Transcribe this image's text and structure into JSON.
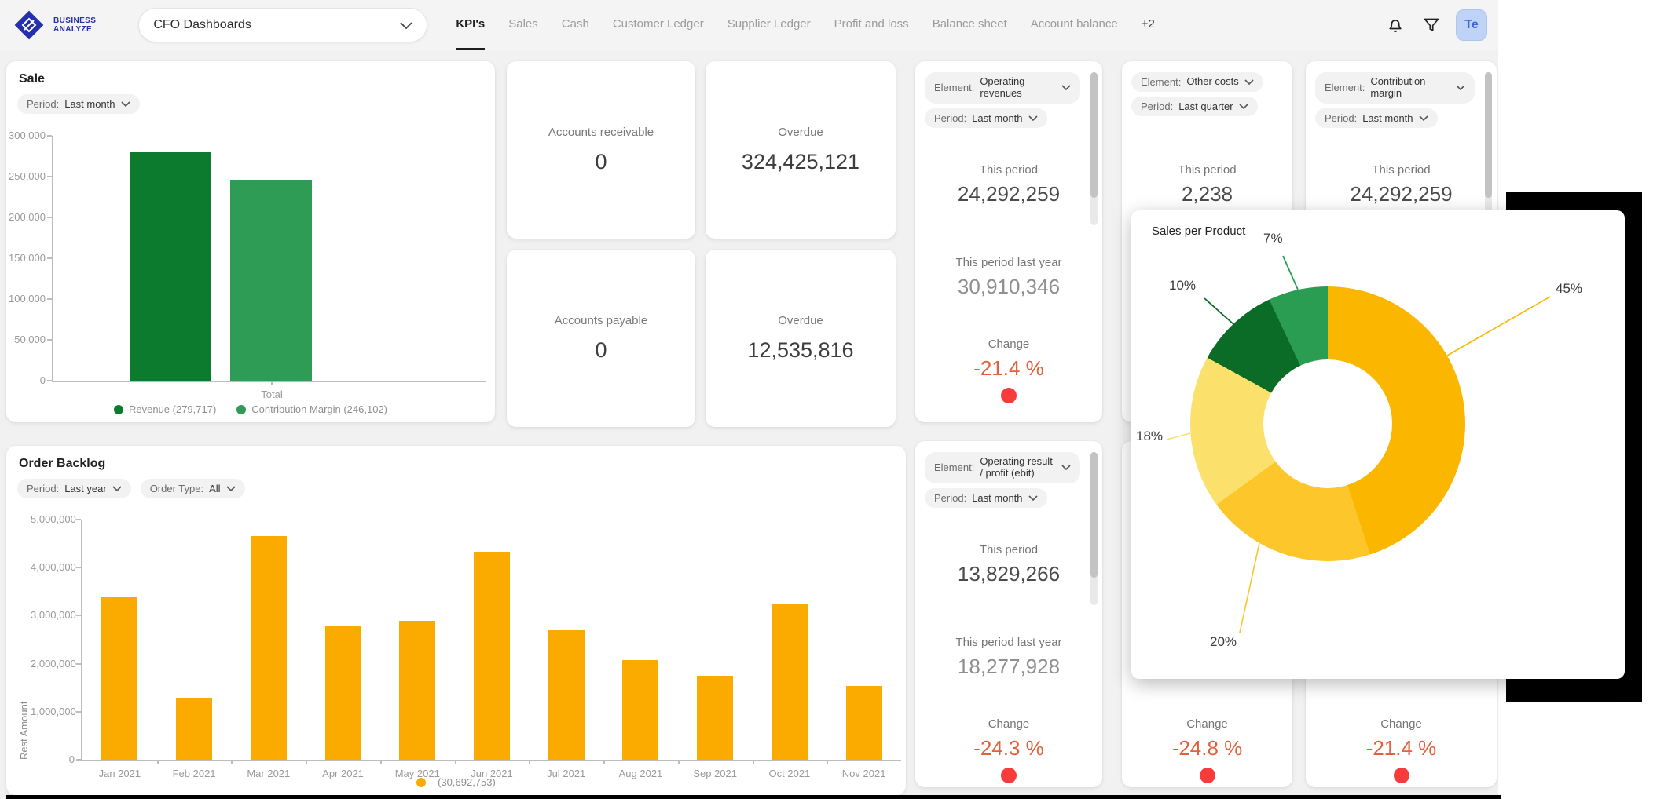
{
  "navbar": {
    "logo_line1": "BUSINESS",
    "logo_line2": "ANALYZE",
    "dashboard_selector": "CFO Dashboards",
    "tabs": [
      "KPI's",
      "Sales",
      "Cash",
      "Customer Ledger",
      "Supplier Ledger",
      "Profit and loss",
      "Balance sheet",
      "Account balance",
      "+2"
    ],
    "active_tab": "KPI's",
    "avatar": "Te"
  },
  "sale": {
    "title": "Sale",
    "period_label": "Period:",
    "period_value": "Last month",
    "x_label": "Total",
    "legend": [
      {
        "name": "Revenue (279,717)"
      },
      {
        "name": "Contribution Margin (246,102)"
      }
    ]
  },
  "stats": [
    {
      "label": "Accounts receivable",
      "value": "0"
    },
    {
      "label": "Overdue",
      "value": "324,425,121"
    },
    {
      "label": "Accounts payable",
      "value": "0"
    },
    {
      "label": "Overdue",
      "value": "12,535,816"
    }
  ],
  "kpis": {
    "element_label": "Element:",
    "period_label": "Period:",
    "this_period_label": "This period",
    "last_year_label": "This period last year",
    "change_label": "Change",
    "cards": [
      {
        "element": "Operating revenues",
        "period": "Last month",
        "this_period": "24,292,259",
        "last_year": "30,910,346",
        "change": "-21.4 %"
      },
      {
        "element": "Other costs",
        "period": "Last quarter",
        "this_period": "2,238"
      },
      {
        "element": "Contribution margin",
        "period": "Last month",
        "this_period": "24,292,259"
      },
      {
        "element": "Operating result / profit (ebit)",
        "period": "Last month",
        "this_period": "13,829,266",
        "last_year": "18,277,928",
        "change": "-24.3 %"
      },
      {
        "change": "-24.8 %"
      },
      {
        "change": "-21.4 %"
      }
    ]
  },
  "order_backlog": {
    "title": "Order Backlog",
    "period_label": "Period:",
    "period_value": "Last year",
    "ordertype_label": "Order Type:",
    "ordertype_value": "All",
    "y_axis_label": "Rest Amount",
    "legend": "- (30,692,753)"
  },
  "sales_per_product": {
    "title": "Sales per Product",
    "labels": [
      "45%",
      "20%",
      "18%",
      "10%",
      "7%"
    ]
  },
  "colors": {
    "revenue": "#0C7B2D",
    "contribution_margin": "#2E9C55",
    "amber": "#FBAB00",
    "donut": [
      "#FBB600",
      "#FDC62B",
      "#FCE06C",
      "#0B6C28",
      "#2B9D52"
    ],
    "change_text": "#E2603C",
    "status_dot": "#F93B3B",
    "brand_blue": "#2430AC"
  },
  "chart_data": [
    {
      "type": "bar",
      "title": "Sale",
      "categories": [
        "Total"
      ],
      "series": [
        {
          "name": "Revenue",
          "value": 279717,
          "color": "#0C7B2D"
        },
        {
          "name": "Contribution Margin",
          "value": 246102,
          "color": "#2E9C55"
        }
      ],
      "ylim": [
        0,
        300000
      ],
      "ystep": 50000,
      "grid": false,
      "legend_position": "bottom"
    },
    {
      "type": "bar",
      "title": "Order Backlog",
      "ylabel": "Rest Amount",
      "categories": [
        "Jan 2021",
        "Feb 2021",
        "Mar 2021",
        "Apr 2021",
        "May 2021",
        "Jun 2021",
        "Jul 2021",
        "Aug 2021",
        "Sep 2021",
        "Oct 2021",
        "Nov 2021"
      ],
      "values": [
        3380000,
        1290000,
        4660000,
        2770000,
        2900000,
        4330000,
        2700000,
        2080000,
        1750000,
        3250000,
        1540000
      ],
      "series_total": 30692753,
      "ylim": [
        0,
        5000000
      ],
      "ystep": 1000000,
      "color": "#FBAB00",
      "grid": false,
      "legend_position": "bottom"
    },
    {
      "type": "pie",
      "donut": true,
      "title": "Sales per Product",
      "labels": [
        "45%",
        "20%",
        "18%",
        "10%",
        "7%"
      ],
      "values": [
        45,
        20,
        18,
        10,
        7
      ],
      "colors": [
        "#FBB600",
        "#FDC62B",
        "#FCE06C",
        "#0B6C28",
        "#2B9D52"
      ]
    }
  ]
}
